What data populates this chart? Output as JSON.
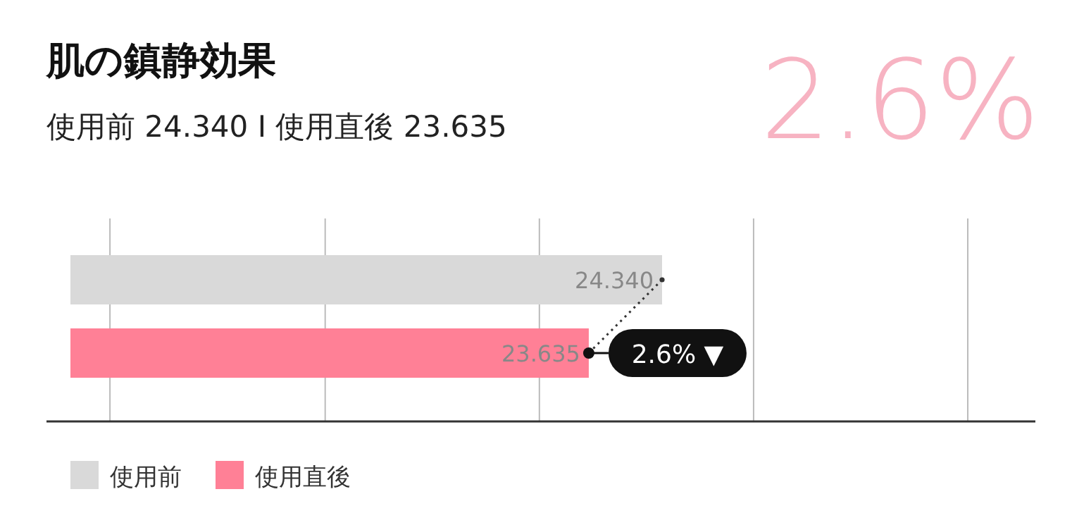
{
  "chart_data": {
    "type": "bar",
    "orientation": "horizontal",
    "stacked": true,
    "title": "肌の鎮静効果",
    "subtitle": "使用前 24.340 I 使用直後 23.635",
    "categories": [
      null,
      null
    ],
    "series": [
      {
        "name": "使用前",
        "color": "#d9d9d9",
        "values": [
          24.34,
          null
        ],
        "value_labels": [
          "24.340",
          null
        ]
      },
      {
        "name": "使用直後",
        "color": "#ff8096",
        "values": [
          null,
          23.635
        ],
        "value_labels": [
          null,
          "23.635"
        ]
      }
    ],
    "xlim": [
      18.65,
      27.93
    ],
    "xticks": [
      {
        "value": 19.03,
        "label": null
      },
      {
        "value": 21.1,
        "label": null
      },
      {
        "value": 23.16,
        "label": null
      },
      {
        "value": 25.22,
        "label": null
      },
      {
        "value": 27.28,
        "label": null
      }
    ],
    "grid": "x",
    "tick_labels": false,
    "legend": "bottom",
    "annotations": [
      "2.6%",
      "2.6% ▼"
    ]
  }
}
